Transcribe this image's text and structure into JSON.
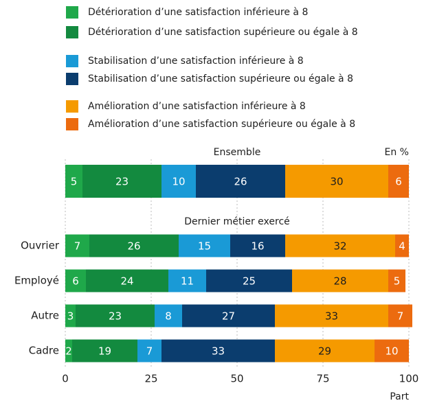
{
  "chart_data": {
    "type": "bar",
    "orientation": "horizontal",
    "stacked": true,
    "annotations": [
      "Ensemble",
      "Dernier métier exercé",
      "En %"
    ],
    "categories": [
      null,
      "Ouvrier",
      "Employé",
      "Autre",
      "Cadre"
    ],
    "series": [
      {
        "name": "Détérioration d’une satisfaction inférieure à 8",
        "color": "#1fa84a",
        "values": [
          5,
          7,
          6,
          3,
          2
        ]
      },
      {
        "name": "Détérioration d’une satisfaction supérieure ou égale à 8",
        "color": "#138a3f",
        "values": [
          23,
          26,
          24,
          23,
          19
        ]
      },
      {
        "name": "Stabilisation d’une satisfaction inférieure à 8",
        "color": "#1a9ad6",
        "values": [
          10,
          15,
          11,
          8,
          7
        ]
      },
      {
        "name": "Stabilisation d’une satisfaction supérieure ou égale à 8",
        "color": "#0b3d6e",
        "values": [
          26,
          16,
          25,
          27,
          33
        ]
      },
      {
        "name": "Amélioration d’une satisfaction inférieure à 8",
        "color": "#f59a00",
        "values": [
          30,
          32,
          28,
          33,
          29
        ]
      },
      {
        "name": "Amélioration d’une satisfaction supérieure ou égale à 8",
        "color": "#ec6b0f",
        "values": [
          6,
          4,
          5,
          7,
          10
        ]
      }
    ],
    "xlabel": "Part",
    "xlim": [
      0,
      100
    ],
    "xticks": [
      0,
      25,
      50,
      75,
      100
    ],
    "grid": true
  }
}
